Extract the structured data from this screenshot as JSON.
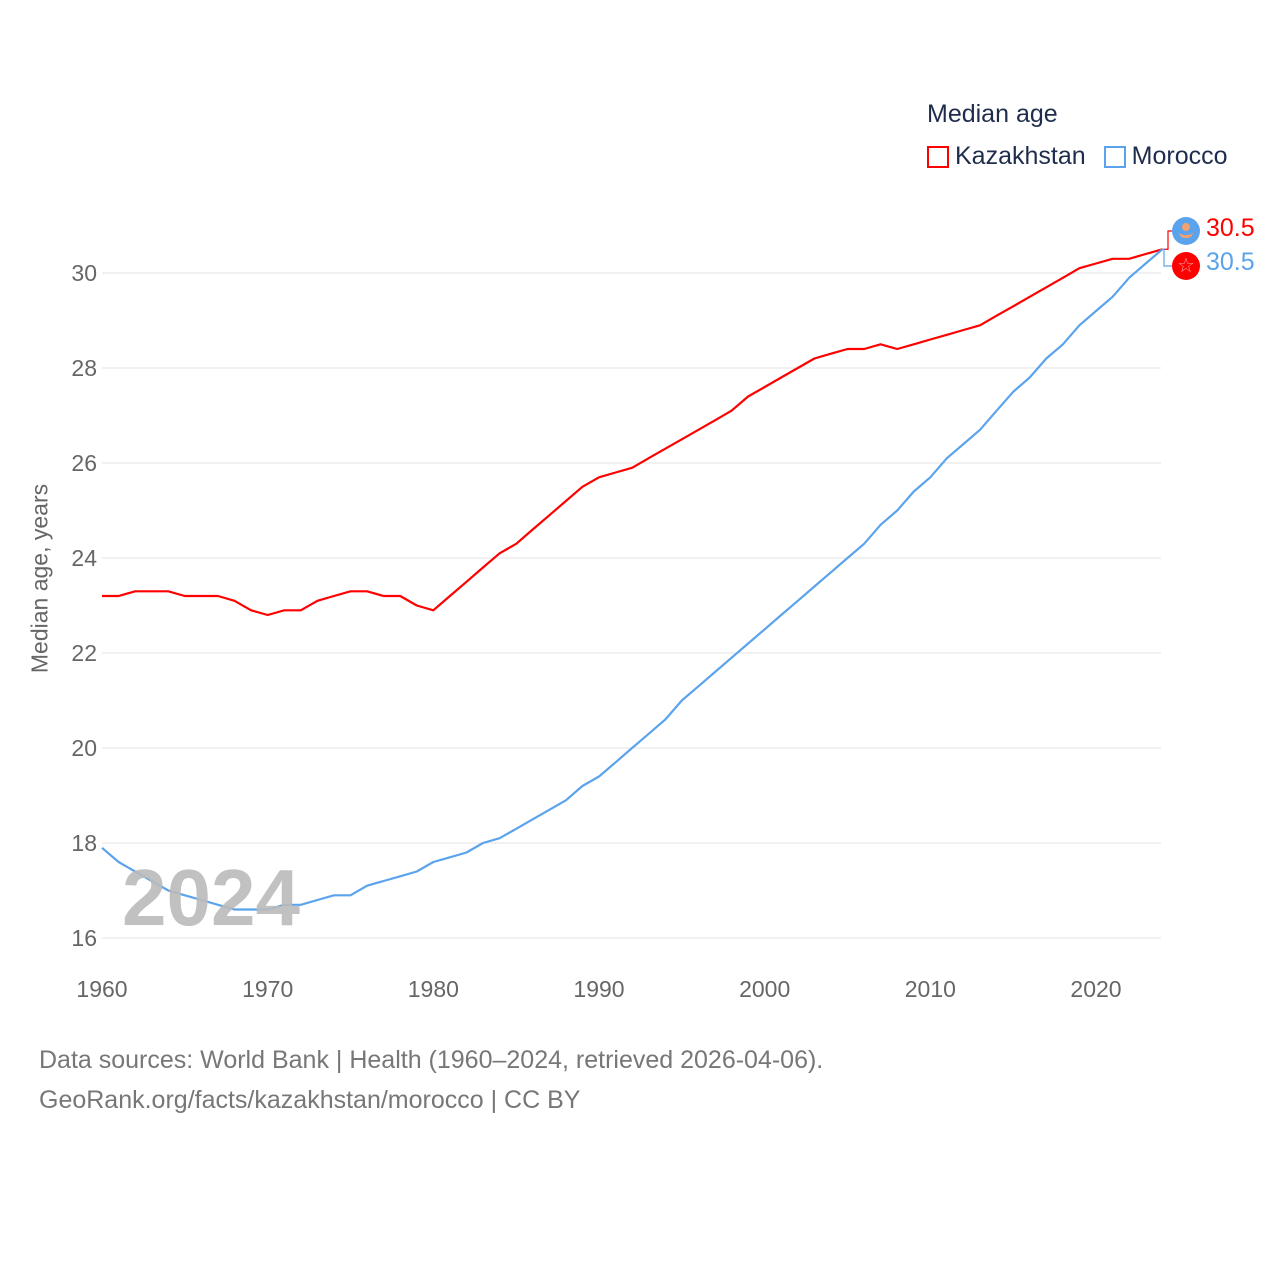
{
  "chart_data": {
    "type": "line",
    "title": "Median age",
    "xlabel": "",
    "ylabel": "Median age, years",
    "xlim": [
      1960,
      2024
    ],
    "ylim": [
      16,
      31
    ],
    "xticks": [
      1960,
      1970,
      1980,
      1990,
      2000,
      2010,
      2020
    ],
    "yticks": [
      16,
      18,
      20,
      22,
      24,
      26,
      28,
      30
    ],
    "grid": true,
    "legend_placement": "top-right",
    "current_year": "2024",
    "x": [
      1960,
      1961,
      1962,
      1963,
      1964,
      1965,
      1966,
      1967,
      1968,
      1969,
      1970,
      1971,
      1972,
      1973,
      1974,
      1975,
      1976,
      1977,
      1978,
      1979,
      1980,
      1981,
      1982,
      1983,
      1984,
      1985,
      1986,
      1987,
      1988,
      1989,
      1990,
      1991,
      1992,
      1993,
      1994,
      1995,
      1996,
      1997,
      1998,
      1999,
      2000,
      2001,
      2002,
      2003,
      2004,
      2005,
      2006,
      2007,
      2008,
      2009,
      2010,
      2011,
      2012,
      2013,
      2014,
      2015,
      2016,
      2017,
      2018,
      2019,
      2020,
      2021,
      2022,
      2023,
      2024
    ],
    "series": [
      {
        "name": "Kazakhstan",
        "color": "#ff0000",
        "end_label": "30.5",
        "values": [
          23.2,
          23.2,
          23.3,
          23.3,
          23.3,
          23.2,
          23.2,
          23.2,
          23.1,
          22.9,
          22.8,
          22.9,
          22.9,
          23.1,
          23.2,
          23.3,
          23.3,
          23.2,
          23.2,
          23.0,
          22.9,
          23.2,
          23.5,
          23.8,
          24.1,
          24.3,
          24.6,
          24.9,
          25.2,
          25.5,
          25.7,
          25.8,
          25.9,
          26.1,
          26.3,
          26.5,
          26.7,
          26.9,
          27.1,
          27.4,
          27.6,
          27.8,
          28.0,
          28.2,
          28.3,
          28.4,
          28.4,
          28.5,
          28.4,
          28.5,
          28.6,
          28.7,
          28.8,
          28.9,
          29.1,
          29.3,
          29.5,
          29.7,
          29.9,
          30.1,
          30.2,
          30.3,
          30.3,
          30.4,
          30.5
        ]
      },
      {
        "name": "Morocco",
        "color": "#5ba3ec",
        "end_label": "30.5",
        "values": [
          17.9,
          17.6,
          17.4,
          17.2,
          17.0,
          16.9,
          16.8,
          16.7,
          16.6,
          16.6,
          16.6,
          16.7,
          16.7,
          16.8,
          16.9,
          16.9,
          17.1,
          17.2,
          17.3,
          17.4,
          17.6,
          17.7,
          17.8,
          18.0,
          18.1,
          18.3,
          18.5,
          18.7,
          18.9,
          19.2,
          19.4,
          19.7,
          20.0,
          20.3,
          20.6,
          21.0,
          21.3,
          21.6,
          21.9,
          22.2,
          22.5,
          22.8,
          23.1,
          23.4,
          23.7,
          24.0,
          24.3,
          24.7,
          25.0,
          25.4,
          25.7,
          26.1,
          26.4,
          26.7,
          27.1,
          27.5,
          27.8,
          28.2,
          28.5,
          28.9,
          29.2,
          29.5,
          29.9,
          30.2,
          30.5
        ]
      }
    ]
  },
  "footer": {
    "line1": "Data sources: World Bank | Health (1960–2024, retrieved 2026-04-06).",
    "line2": "GeoRank.org/facts/kazakhstan/morocco | CC BY"
  }
}
